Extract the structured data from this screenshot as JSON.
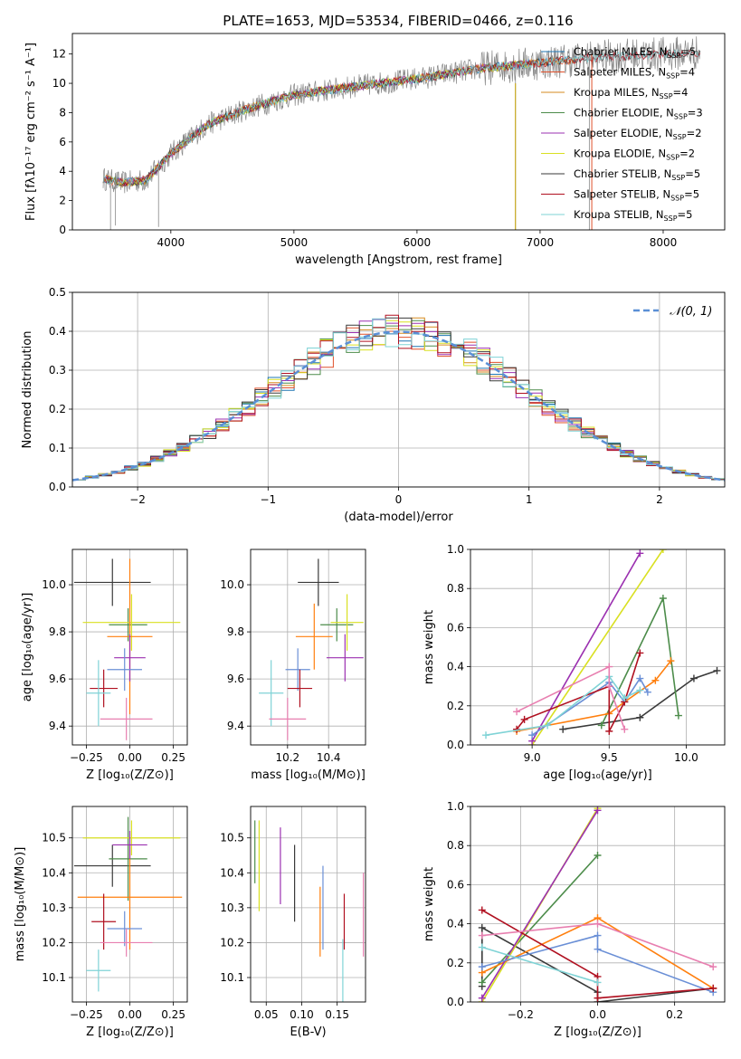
{
  "title": "PLATE=1653, MJD=53534, FIBERID=0466, z=0.116",
  "colors": {
    "chabrier_miles": "#1f77b4",
    "salpeter_miles": "#ff7f0e",
    "kroupa_miles": "#d68a1f",
    "chabrier_elodie": "#4c8c4a",
    "salpeter_elodie": "#9b30b0",
    "kroupa_elodie": "#d9e021",
    "chabrier_stelib": "#3a3a3a",
    "salpeter_stelib": "#b01020",
    "kroupa_stelib": "#7fd3d6",
    "normal_dashed": "#5a8fd6",
    "spectrum_gray": "#888888",
    "pink": "#e87fb0"
  },
  "legend_spectrum": [
    {
      "label": "Chabrier MILES, N",
      "sub": "SSP",
      "suffix": "=5"
    },
    {
      "label": "Salpeter MILES, N",
      "sub": "SSP",
      "suffix": "=4"
    },
    {
      "label": "Kroupa MILES, N",
      "sub": "SSP",
      "suffix": "=4"
    },
    {
      "label": "Chabrier ELODIE, N",
      "sub": "SSP",
      "suffix": "=3"
    },
    {
      "label": "Salpeter ELODIE, N",
      "sub": "SSP",
      "suffix": "=2"
    },
    {
      "label": "Kroupa ELODIE, N",
      "sub": "SSP",
      "suffix": "=2"
    },
    {
      "label": "Chabrier STELIB, N",
      "sub": "SSP",
      "suffix": "=5"
    },
    {
      "label": "Salpeter STELIB, N",
      "sub": "SSP",
      "suffix": "=5"
    },
    {
      "label": "Kroupa STELIB, N",
      "sub": "SSP",
      "suffix": "=5"
    }
  ],
  "legend_colors": [
    "#1f77b4",
    "#e0502a",
    "#d68a1f",
    "#4c8c4a",
    "#9b30b0",
    "#d9e021",
    "#3a3a3a",
    "#b01020",
    "#7fd3d6"
  ],
  "chart_data": [
    {
      "type": "line",
      "title": "PLATE=1653, MJD=53534, FIBERID=0466, z=0.116",
      "xlabel": "wavelength [Angstrom, rest frame]",
      "ylabel": "Flux [fλ10⁻¹⁷ erg cm⁻² s⁻¹ A⁻¹]",
      "xlim": [
        3200,
        8500
      ],
      "ylim": [
        0,
        13.4
      ],
      "xticks": [
        "4000",
        "5000",
        "6000",
        "7000",
        "8000"
      ],
      "yticks": [
        "0",
        "2",
        "4",
        "6",
        "8",
        "10",
        "12"
      ],
      "continuum_knots": {
        "x": [
          3400,
          3600,
          3800,
          4000,
          4300,
          4600,
          5000,
          5500,
          6000,
          6500,
          7000,
          7500,
          8000,
          8300
        ],
        "y": [
          3.6,
          3.2,
          3.4,
          5.2,
          7.2,
          8.2,
          9.2,
          9.8,
          10.3,
          11.0,
          11.4,
          11.8,
          12.0,
          12.1
        ]
      }
    },
    {
      "type": "area",
      "xlabel": "(data-model)/error",
      "ylabel": "Normed distribution",
      "xlim": [
        -2.5,
        2.5
      ],
      "ylim": [
        0,
        0.5
      ],
      "xticks": [
        "−2",
        "−1",
        "0",
        "1",
        "2"
      ],
      "yticks": [
        "0.0",
        "0.1",
        "0.2",
        "0.3",
        "0.4",
        "0.5"
      ],
      "legend": "𝒩(0, 1)",
      "bin_width": 0.1
    },
    {
      "type": "scatter",
      "xlabel": "Z [log₁₀(Z/Z⊙)]",
      "ylabel": "age  [log₁₀(age/yr)]",
      "xlim": [
        -0.33,
        0.33
      ],
      "ylim": [
        9.32,
        10.15
      ],
      "xticks": [
        "−0.25",
        "0.00",
        "0.25"
      ],
      "yticks": [
        "9.4",
        "9.6",
        "9.8",
        "10.0"
      ],
      "points": [
        {
          "x": -0.1,
          "y": 10.01,
          "xerr": 0.22,
          "yerr": 0.1,
          "c": "#3a3a3a"
        },
        {
          "x": -0.01,
          "y": 9.83,
          "xerr": 0.11,
          "yerr": 0.07,
          "c": "#4c8c4a"
        },
        {
          "x": 0.01,
          "y": 9.84,
          "xerr": 0.28,
          "yerr": 0.12,
          "c": "#d9e021"
        },
        {
          "x": 0.0,
          "y": 9.78,
          "xerr": 0.13,
          "yerr": 0.33,
          "c": "#ff7f0e"
        },
        {
          "x": 0.0,
          "y": 9.69,
          "xerr": 0.09,
          "yerr": 0.1,
          "c": "#9b30b0"
        },
        {
          "x": -0.03,
          "y": 9.64,
          "xerr": 0.1,
          "yerr": 0.09,
          "c": "#6a8fd6"
        },
        {
          "x": -0.15,
          "y": 9.56,
          "xerr": 0.08,
          "yerr": 0.08,
          "c": "#b01020"
        },
        {
          "x": -0.18,
          "y": 9.54,
          "xerr": 0.07,
          "yerr": 0.14,
          "c": "#7fd3d6"
        },
        {
          "x": -0.02,
          "y": 9.43,
          "xerr": 0.15,
          "yerr": 0.09,
          "c": "#e87fb0"
        }
      ]
    },
    {
      "type": "scatter",
      "xlabel": "mass [log₁₀(M/M⊙)]",
      "ylabel": "",
      "xlim": [
        10.02,
        10.58
      ],
      "ylim": [
        9.32,
        10.15
      ],
      "xticks": [
        "10.2",
        "10.4"
      ],
      "yticks": [
        "9.4",
        "9.6",
        "9.8",
        "10.0"
      ],
      "points": [
        {
          "x": 10.35,
          "y": 10.01,
          "xerr": 0.1,
          "yerr": 0.1,
          "c": "#3a3a3a"
        },
        {
          "x": 10.44,
          "y": 9.83,
          "xerr": 0.08,
          "yerr": 0.07,
          "c": "#4c8c4a"
        },
        {
          "x": 10.49,
          "y": 9.84,
          "xerr": 0.08,
          "yerr": 0.12,
          "c": "#d9e021"
        },
        {
          "x": 10.33,
          "y": 9.78,
          "xerr": 0.09,
          "yerr": 0.14,
          "c": "#ff7f0e"
        },
        {
          "x": 10.48,
          "y": 9.69,
          "xerr": 0.09,
          "yerr": 0.1,
          "c": "#9b30b0"
        },
        {
          "x": 10.25,
          "y": 9.64,
          "xerr": 0.06,
          "yerr": 0.09,
          "c": "#6a8fd6"
        },
        {
          "x": 10.26,
          "y": 9.56,
          "xerr": 0.06,
          "yerr": 0.08,
          "c": "#b01020"
        },
        {
          "x": 10.12,
          "y": 9.54,
          "xerr": 0.06,
          "yerr": 0.14,
          "c": "#7fd3d6"
        },
        {
          "x": 10.2,
          "y": 9.43,
          "xerr": 0.09,
          "yerr": 0.09,
          "c": "#e87fb0"
        }
      ]
    },
    {
      "type": "line",
      "xlabel": "age  [log₁₀(age/yr)]",
      "ylabel": "mass weight",
      "xlim": [
        8.6,
        10.25
      ],
      "ylim": [
        0,
        1
      ],
      "xticks": [
        "9.0",
        "9.5",
        "10.0"
      ],
      "yticks": [
        "0.0",
        "0.2",
        "0.4",
        "0.6",
        "0.8",
        "1.0"
      ],
      "series": [
        {
          "c": "#3a3a3a",
          "x": [
            9.2,
            9.7,
            10.05,
            10.2
          ],
          "y": [
            0.08,
            0.14,
            0.34,
            0.38
          ]
        },
        {
          "c": "#4c8c4a",
          "x": [
            9.45,
            9.85,
            9.95
          ],
          "y": [
            0.1,
            0.75,
            0.15
          ]
        },
        {
          "c": "#d9e021",
          "x": [
            9.0,
            9.85
          ],
          "y": [
            0.0,
            1.0
          ]
        },
        {
          "c": "#ff7f0e",
          "x": [
            8.9,
            9.5,
            9.6,
            9.8,
            9.9
          ],
          "y": [
            0.07,
            0.16,
            0.22,
            0.33,
            0.43
          ]
        },
        {
          "c": "#9b30b0",
          "x": [
            9.0,
            9.7
          ],
          "y": [
            0.02,
            0.98
          ]
        },
        {
          "c": "#6a8fd6",
          "x": [
            9.0,
            9.5,
            9.6,
            9.7,
            9.75
          ],
          "y": [
            0.05,
            0.32,
            0.22,
            0.34,
            0.27
          ]
        },
        {
          "c": "#b01020",
          "x": [
            8.9,
            8.95,
            9.5,
            9.5,
            9.6,
            9.7
          ],
          "y": [
            0.08,
            0.13,
            0.3,
            0.07,
            0.22,
            0.47
          ]
        },
        {
          "c": "#7fd3d6",
          "x": [
            8.7,
            9.1,
            9.5,
            9.6,
            9.7
          ],
          "y": [
            0.05,
            0.1,
            0.35,
            0.24,
            0.28
          ]
        },
        {
          "c": "#e87fb0",
          "x": [
            8.9,
            9.5,
            9.5,
            9.6
          ],
          "y": [
            0.17,
            0.4,
            0.3,
            0.08
          ]
        }
      ]
    },
    {
      "type": "scatter",
      "xlabel": "Z [log₁₀(Z/Z⊙)]",
      "ylabel": "mass [log₁₀(M/M⊙)]",
      "xlim": [
        -0.33,
        0.33
      ],
      "ylim": [
        10.03,
        10.59
      ],
      "xticks": [
        "−0.25",
        "0.00",
        "0.25"
      ],
      "yticks": [
        "10.1",
        "10.2",
        "10.3",
        "10.4",
        "10.5"
      ],
      "points": [
        {
          "x": -0.1,
          "y": 10.42,
          "xerr": 0.22,
          "yerr": 0.06,
          "c": "#3a3a3a"
        },
        {
          "x": -0.01,
          "y": 10.44,
          "xerr": 0.11,
          "yerr": 0.12,
          "c": "#4c8c4a"
        },
        {
          "x": 0.01,
          "y": 10.5,
          "xerr": 0.28,
          "yerr": 0.05,
          "c": "#d9e021"
        },
        {
          "x": 0.0,
          "y": 10.33,
          "xerr": 0.3,
          "yerr": 0.15,
          "c": "#ff7f0e"
        },
        {
          "x": 0.0,
          "y": 10.48,
          "xerr": 0.1,
          "yerr": 0.04,
          "c": "#9b30b0"
        },
        {
          "x": -0.03,
          "y": 10.24,
          "xerr": 0.1,
          "yerr": 0.05,
          "c": "#6a8fd6"
        },
        {
          "x": -0.15,
          "y": 10.26,
          "xerr": 0.07,
          "yerr": 0.08,
          "c": "#b01020"
        },
        {
          "x": -0.18,
          "y": 10.12,
          "xerr": 0.07,
          "yerr": 0.06,
          "c": "#7fd3d6"
        },
        {
          "x": -0.02,
          "y": 10.2,
          "xerr": 0.15,
          "yerr": 0.04,
          "c": "#e87fb0"
        }
      ]
    },
    {
      "type": "scatter",
      "xlabel": "E(B-V)",
      "ylabel": "",
      "xlim": [
        0.028,
        0.19
      ],
      "ylim": [
        10.03,
        10.59
      ],
      "xticks": [
        "0.05",
        "0.10",
        "0.15"
      ],
      "yticks": [
        "10.1",
        "10.2",
        "10.3",
        "10.4",
        "10.5"
      ],
      "points": [
        {
          "x": 0.034,
          "y": 10.46,
          "yerr": 0.09,
          "c": "#4c8c4a"
        },
        {
          "x": 0.04,
          "y": 10.42,
          "yerr": 0.13,
          "c": "#d9e021"
        },
        {
          "x": 0.07,
          "y": 10.42,
          "yerr": 0.11,
          "c": "#9b30b0"
        },
        {
          "x": 0.09,
          "y": 10.37,
          "yerr": 0.11,
          "c": "#3a3a3a"
        },
        {
          "x": 0.13,
          "y": 10.3,
          "yerr": 0.12,
          "c": "#6a8fd6"
        },
        {
          "x": 0.126,
          "y": 10.26,
          "yerr": 0.1,
          "c": "#ff7f0e"
        },
        {
          "x": 0.16,
          "y": 10.26,
          "yerr": 0.08,
          "c": "#b01020"
        },
        {
          "x": 0.158,
          "y": 10.12,
          "yerr": 0.09,
          "c": "#7fd3d6"
        },
        {
          "x": 0.187,
          "y": 10.28,
          "yerr": 0.12,
          "c": "#e87fb0"
        }
      ]
    },
    {
      "type": "line",
      "xlabel": "Z [log₁₀(Z/Z⊙)]",
      "ylabel": "mass weight",
      "xlim": [
        -0.33,
        0.33
      ],
      "ylim": [
        0,
        1
      ],
      "xticks": [
        "−0.2",
        "0.0",
        "0.2"
      ],
      "yticks": [
        "0.0",
        "0.2",
        "0.4",
        "0.6",
        "0.8",
        "1.0"
      ],
      "series": [
        {
          "c": "#3a3a3a",
          "x": [
            -0.3,
            -0.3,
            0.0,
            0.0,
            0.3
          ],
          "y": [
            0.08,
            0.38,
            0.05,
            0.0,
            0.07
          ]
        },
        {
          "c": "#4c8c4a",
          "x": [
            -0.3,
            0.0
          ],
          "y": [
            0.1,
            0.75
          ]
        },
        {
          "c": "#d9e021",
          "x": [
            -0.3,
            0.0
          ],
          "y": [
            0.0,
            0.99
          ]
        },
        {
          "c": "#ff7f0e",
          "x": [
            -0.3,
            0.0,
            0.3
          ],
          "y": [
            0.15,
            0.43,
            0.07
          ]
        },
        {
          "c": "#9b30b0",
          "x": [
            -0.3,
            0.0
          ],
          "y": [
            0.02,
            0.98
          ]
        },
        {
          "c": "#6a8fd6",
          "x": [
            -0.3,
            0.0,
            0.0,
            0.3
          ],
          "y": [
            0.18,
            0.34,
            0.27,
            0.05
          ]
        },
        {
          "c": "#b01020",
          "x": [
            -0.3,
            0.0,
            0.0,
            0.3
          ],
          "y": [
            0.47,
            0.13,
            0.02,
            0.07
          ]
        },
        {
          "c": "#7fd3d6",
          "x": [
            -0.3,
            0.0
          ],
          "y": [
            0.28,
            0.1
          ]
        },
        {
          "c": "#e87fb0",
          "x": [
            -0.3,
            0.0,
            0.3
          ],
          "y": [
            0.34,
            0.4,
            0.18
          ]
        }
      ]
    }
  ]
}
